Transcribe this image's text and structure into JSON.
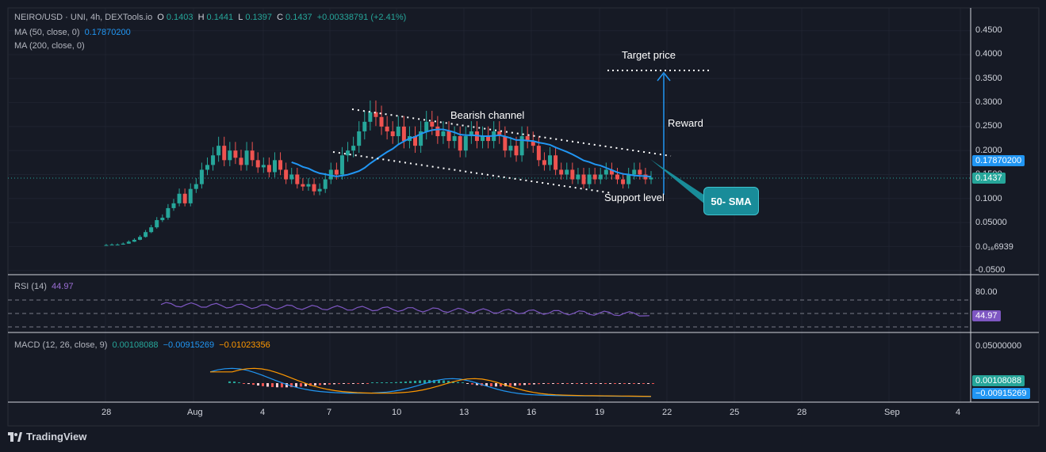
{
  "header": {
    "symbol": "NEIRO/USD · UNI, 4h, DEXTools.io",
    "o_label": "O",
    "o": "0.1403",
    "h_label": "H",
    "h": "0.1441",
    "l_label": "L",
    "l": "0.1397",
    "c_label": "C",
    "c": "0.1437",
    "change": "+0.00338791 (+2.41%)",
    "ma50_label": "MA (50, close, 0)",
    "ma50_value": "0.17870200",
    "ma200_label": "MA (200, close, 0)"
  },
  "rsi": {
    "label": "RSI (14)",
    "value": "44.97",
    "level_label": "80.00",
    "tag": "44.97"
  },
  "macd": {
    "label": "MACD (12, 26, close, 9)",
    "hist": "0.00108088",
    "macd": "−0.00915269",
    "signal": "−0.01023356",
    "axis_label": "0.05000000",
    "tag_hist": "0.00108088",
    "tag_macd": "−0.00915269"
  },
  "price_axis": [
    "0.4500",
    "0.4000",
    "0.3500",
    "0.3000",
    "0.2500",
    "0.2000",
    "0.1500",
    "0.1000",
    "0.05000",
    "0.0₁₆6939",
    "-0.0500"
  ],
  "tags": {
    "ma50": "0.17870200",
    "last": "0.1437"
  },
  "time_axis": [
    "28",
    "Aug",
    "4",
    "7",
    "10",
    "13",
    "16",
    "19",
    "22",
    "25",
    "28",
    "Sep",
    "4"
  ],
  "annotations": {
    "target": "Target price",
    "channel": "Bearish channel",
    "reward": "Reward",
    "support": "Support level",
    "sma": "50- SMA"
  },
  "brand": "TradingView",
  "colors": {
    "bg": "#151924",
    "up": "#26a69a",
    "down": "#ef5350",
    "ma": "#2196f3",
    "rsi": "#7e57c2",
    "macd": "#2196f3",
    "signal": "#ff9800"
  },
  "chart_data": {
    "type": "candlestick",
    "title": "NEIRO/USD · UNI, 4h, DEXTools.io",
    "ylim": [
      -0.05,
      0.46
    ],
    "x_ticks": [
      "28",
      "Aug",
      "4",
      "7",
      "10",
      "13",
      "16",
      "19",
      "22",
      "25",
      "28",
      "Sep",
      "4"
    ],
    "closes": [
      0.003,
      0.004,
      0.004,
      0.006,
      0.01,
      0.014,
      0.02,
      0.03,
      0.04,
      0.055,
      0.06,
      0.08,
      0.09,
      0.11,
      0.09,
      0.12,
      0.13,
      0.16,
      0.17,
      0.19,
      0.21,
      0.18,
      0.2,
      0.185,
      0.17,
      0.2,
      0.18,
      0.165,
      0.17,
      0.155,
      0.18,
      0.16,
      0.14,
      0.15,
      0.13,
      0.125,
      0.13,
      0.115,
      0.12,
      0.14,
      0.16,
      0.15,
      0.19,
      0.2,
      0.21,
      0.24,
      0.26,
      0.28,
      0.27,
      0.25,
      0.24,
      0.23,
      0.25,
      0.22,
      0.23,
      0.21,
      0.24,
      0.26,
      0.25,
      0.23,
      0.24,
      0.22,
      0.23,
      0.2,
      0.23,
      0.24,
      0.22,
      0.23,
      0.22,
      0.24,
      0.23,
      0.2,
      0.21,
      0.19,
      0.23,
      0.22,
      0.21,
      0.18,
      0.17,
      0.19,
      0.16,
      0.15,
      0.16,
      0.14,
      0.15,
      0.13,
      0.15,
      0.14,
      0.15,
      0.16,
      0.15,
      0.14,
      0.13,
      0.15,
      0.16,
      0.15,
      0.14,
      0.1437
    ],
    "ma50_last": 0.178702,
    "last_close": 0.1437,
    "rsi_last": 44.97,
    "macd_last": {
      "histogram": 0.00108088,
      "macd": -0.00915269,
      "signal": -0.01023356
    }
  }
}
